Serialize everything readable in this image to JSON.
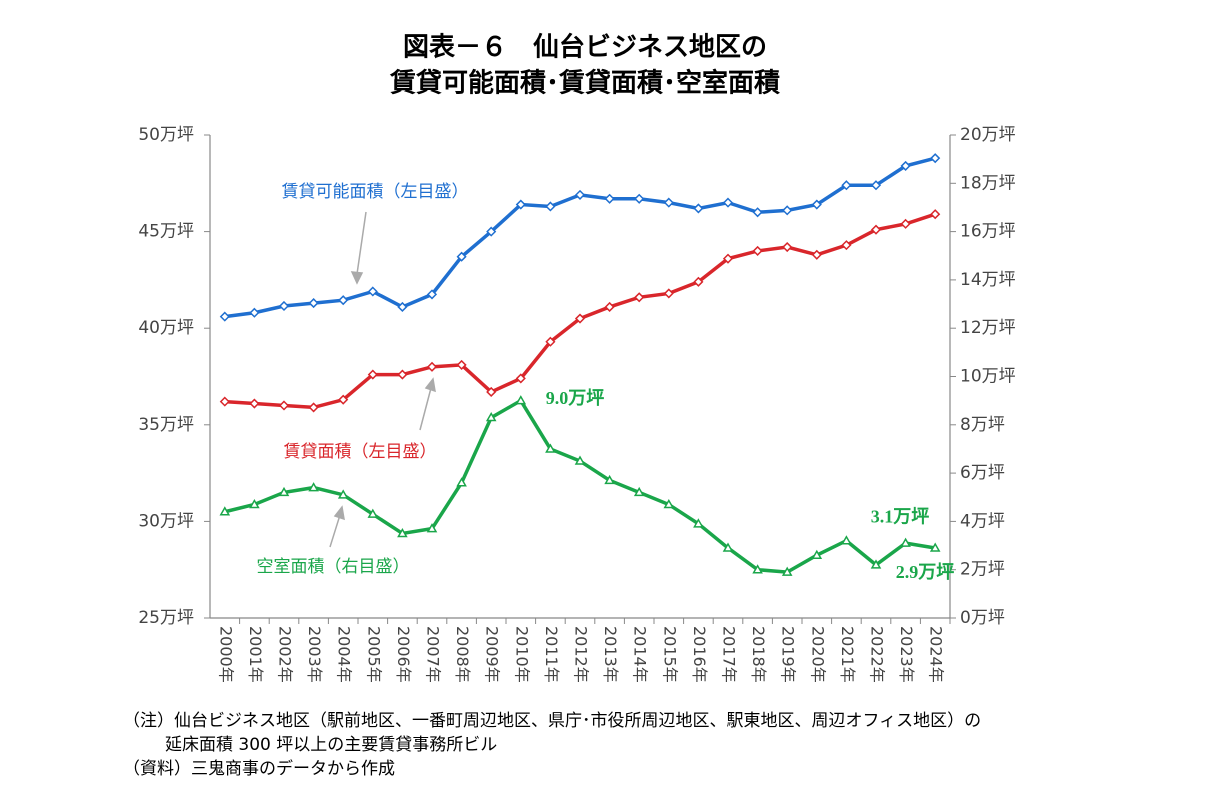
{
  "chart_data": {
    "type": "line",
    "title": [
      "図表－６　仙台ビジネス地区の",
      "賃貸可能面積･賃貸面積･空室面積"
    ],
    "categories": [
      "2000年",
      "2001年",
      "2002年",
      "2003年",
      "2004年",
      "2005年",
      "2006年",
      "2007年",
      "2008年",
      "2009年",
      "2010年",
      "2011年",
      "2012年",
      "2013年",
      "2014年",
      "2015年",
      "2016年",
      "2017年",
      "2018年",
      "2019年",
      "2020年",
      "2021年",
      "2022年",
      "2023年",
      "2024年"
    ],
    "series": [
      {
        "name": "賃貸可能面積（左目盛）",
        "color": "#1f6fd0",
        "axis": "y",
        "marker": "diamond",
        "values": [
          40.6,
          40.8,
          41.15,
          41.3,
          41.45,
          41.9,
          41.1,
          41.75,
          43.7,
          45.0,
          46.4,
          46.3,
          46.9,
          46.7,
          46.7,
          46.5,
          46.2,
          46.5,
          46.0,
          46.1,
          46.4,
          47.4,
          47.4,
          48.4,
          48.8
        ]
      },
      {
        "name": "賃貸面積（左目盛）",
        "color": "#d9262b",
        "axis": "y",
        "marker": "diamond",
        "values": [
          36.2,
          36.1,
          36.0,
          35.9,
          36.3,
          37.6,
          37.6,
          38.0,
          38.1,
          36.7,
          37.4,
          39.3,
          40.5,
          41.1,
          41.6,
          41.8,
          42.4,
          43.6,
          44.0,
          44.2,
          43.8,
          44.3,
          45.1,
          45.4,
          45.9
        ]
      },
      {
        "name": "空室面積（右目盛）",
        "color": "#1aa64a",
        "axis": "y2",
        "marker": "triangle",
        "values": [
          4.4,
          4.7,
          5.2,
          5.4,
          5.1,
          4.3,
          3.5,
          3.7,
          5.6,
          8.3,
          9.0,
          7.0,
          6.5,
          5.7,
          5.2,
          4.7,
          3.9,
          2.9,
          2.0,
          1.9,
          2.6,
          3.2,
          2.2,
          3.1,
          2.9
        ],
        "value_labels": [
          null,
          null,
          null,
          null,
          null,
          null,
          null,
          null,
          null,
          null,
          "9.0万坪",
          null,
          null,
          null,
          null,
          null,
          null,
          null,
          null,
          null,
          null,
          null,
          null,
          "3.1万坪",
          "2.9万坪"
        ]
      }
    ],
    "ylim": [
      25,
      50
    ],
    "yticks": [
      {
        "value": 25,
        "label": "25万坪"
      },
      {
        "value": 30,
        "label": "30万坪"
      },
      {
        "value": 35,
        "label": "35万坪"
      },
      {
        "value": 40,
        "label": "40万坪"
      },
      {
        "value": 45,
        "label": "45万坪"
      },
      {
        "value": 50,
        "label": "50万坪"
      }
    ],
    "y2lim": [
      0,
      20
    ],
    "y2ticks": [
      {
        "value": 0,
        "label": "0万坪"
      },
      {
        "value": 2,
        "label": "2万坪"
      },
      {
        "value": 4,
        "label": "4万坪"
      },
      {
        "value": 6,
        "label": "6万坪"
      },
      {
        "value": 8,
        "label": "8万坪"
      },
      {
        "value": 10,
        "label": "10万坪"
      },
      {
        "value": 12,
        "label": "12万坪"
      },
      {
        "value": 14,
        "label": "14万坪"
      },
      {
        "value": 16,
        "label": "16万坪"
      },
      {
        "value": 18,
        "label": "18万坪"
      },
      {
        "value": 20,
        "label": "20万坪"
      }
    ],
    "grid": false,
    "notes": [
      "（注）仙台ビジネス地区（駅前地区、一番町周辺地区、県庁･市役所周辺地区、駅東地区、周辺オフィス地区）の",
      "延床面積 300 坪以上の主要賃貸事務所ビル",
      "（資料）三鬼商事のデータから作成"
    ]
  }
}
